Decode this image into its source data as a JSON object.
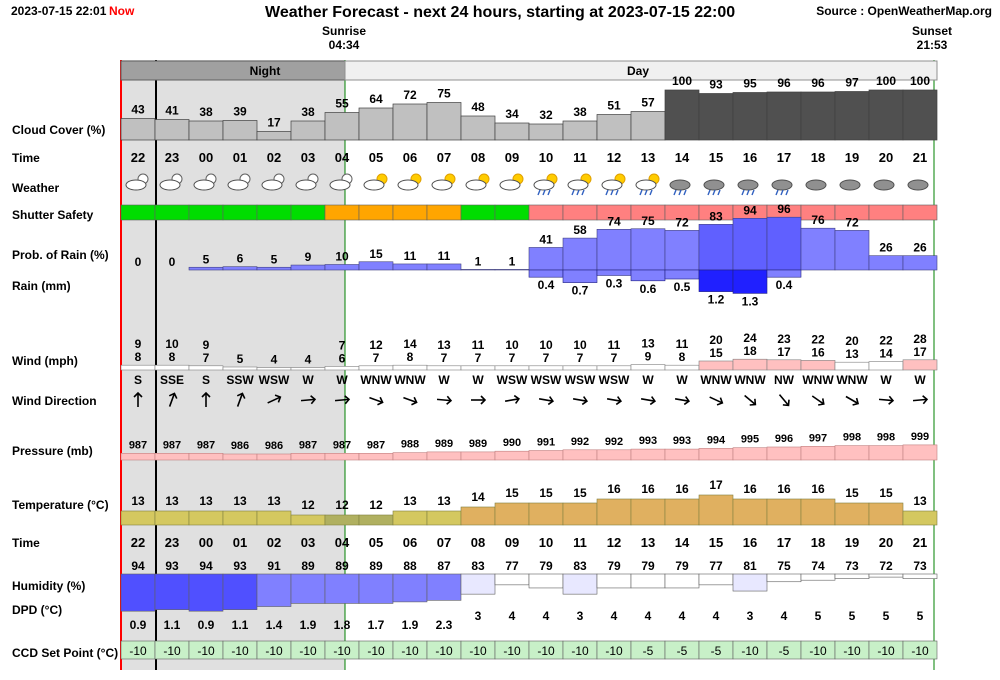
{
  "header": {
    "timestamp": "2023-07-15 22:01",
    "now_label": "Now",
    "title": "Weather Forecast - next 24 hours, starting at 2023-07-15 22:00",
    "source": "Source : OpenWeatherMap.org",
    "sunrise_label": "Sunrise",
    "sunrise_time": "04:34",
    "sunset_label": "Sunset",
    "sunset_time": "21:53"
  },
  "period_labels": {
    "night": "Night",
    "day": "Day"
  },
  "row_labels": {
    "cloud": "Cloud Cover (%)",
    "time": "Time",
    "weather": "Weather",
    "shutter": "Shutter Safety",
    "rain_prob": "Prob. of Rain (%)",
    "rain_mm": "Rain (mm)",
    "wind": "Wind (mph)",
    "wind_dir": "Wind Direction",
    "pressure": "Pressure (mb)",
    "temperature": "Temperature (°C)",
    "time2": "Time",
    "humidity": "Humidity (%)",
    "dpd": "DPD (°C)",
    "ccd": "CCD Set Point (°C)"
  },
  "colors": {
    "night_bg": "#e0e0e0",
    "cloud_light": "#c0c0c0",
    "cloud_dark": "#505050",
    "shutter_safe": "#00dd00",
    "shutter_marginal": "#ffa500",
    "shutter_unsafe": "#ff8080",
    "rain_prob": "#8080ff",
    "rain_mm": "#3030ff",
    "wind_low": "#ffffff",
    "wind_high": "#ffc0c0",
    "pressure": "#ffc0c0",
    "temp_cool": "#d4c860",
    "temp_warm": "#e0b060",
    "humidity_high": "#5050ff",
    "humidity_low": "#ffffff",
    "ccd": "#c8f0c8"
  },
  "chart_data": {
    "type": "table",
    "hours": [
      "22",
      "23",
      "00",
      "01",
      "02",
      "03",
      "04",
      "05",
      "06",
      "07",
      "08",
      "09",
      "10",
      "11",
      "12",
      "13",
      "14",
      "15",
      "16",
      "17",
      "18",
      "19",
      "20",
      "21"
    ],
    "cloud_cover": [
      43,
      41,
      38,
      39,
      17,
      38,
      55,
      64,
      72,
      75,
      48,
      34,
      32,
      38,
      51,
      57,
      100,
      93,
      95,
      96,
      96,
      97,
      100,
      100
    ],
    "weather_icons": [
      "partly-cloudy-night-icon",
      "partly-cloudy-night-icon",
      "partly-cloudy-night-icon",
      "partly-cloudy-night-icon",
      "partly-cloudy-night-icon",
      "partly-cloudy-night-icon",
      "partly-cloudy-night-icon",
      "partly-cloudy-day-icon",
      "partly-cloudy-day-icon",
      "partly-cloudy-day-icon",
      "partly-cloudy-day-icon",
      "partly-cloudy-day-icon",
      "light-rain-sun-icon",
      "light-rain-sun-icon",
      "light-rain-sun-icon",
      "light-rain-sun-icon",
      "rain-cloud-icon",
      "rain-cloud-icon",
      "rain-cloud-icon",
      "rain-cloud-icon",
      "overcast-icon",
      "overcast-icon",
      "overcast-icon",
      "overcast-icon"
    ],
    "shutter_safety": [
      "safe",
      "safe",
      "safe",
      "safe",
      "safe",
      "safe",
      "marginal",
      "marginal",
      "marginal",
      "marginal",
      "safe",
      "safe",
      "unsafe",
      "unsafe",
      "unsafe",
      "unsafe",
      "unsafe",
      "unsafe",
      "unsafe",
      "unsafe",
      "unsafe",
      "unsafe",
      "unsafe",
      "unsafe"
    ],
    "rain_probability": [
      0,
      0,
      5,
      6,
      5,
      9,
      10,
      15,
      11,
      11,
      1,
      1,
      41,
      58,
      74,
      75,
      72,
      83,
      94,
      96,
      76,
      72,
      26,
      26
    ],
    "rain_mm": [
      null,
      null,
      null,
      null,
      null,
      null,
      null,
      null,
      null,
      null,
      null,
      null,
      0.4,
      0.7,
      0.3,
      0.6,
      0.5,
      1.2,
      1.3,
      0.4,
      null,
      null,
      null,
      null
    ],
    "wind_gust": [
      9,
      10,
      9,
      null,
      null,
      null,
      7,
      12,
      14,
      13,
      11,
      10,
      10,
      10,
      11,
      13,
      11,
      20,
      24,
      23,
      22,
      20,
      22,
      28
    ],
    "wind_speed": [
      8,
      8,
      7,
      5,
      4,
      4,
      6,
      7,
      8,
      7,
      7,
      7,
      7,
      7,
      7,
      9,
      8,
      15,
      18,
      17,
      16,
      13,
      14,
      17
    ],
    "wind_direction": [
      "S",
      "SSE",
      "S",
      "SSW",
      "WSW",
      "W",
      "W",
      "WNW",
      "WNW",
      "W",
      "W",
      "WSW",
      "WSW",
      "WSW",
      "WSW",
      "W",
      "W",
      "WNW",
      "WNW",
      "NW",
      "WNW",
      "WNW",
      "W",
      "W"
    ],
    "wind_angle": [
      0,
      20,
      0,
      20,
      65,
      85,
      85,
      110,
      110,
      95,
      90,
      80,
      100,
      100,
      100,
      100,
      100,
      115,
      130,
      140,
      125,
      120,
      95,
      85
    ],
    "pressure": [
      987,
      987,
      987,
      986,
      986,
      987,
      987,
      987,
      988,
      989,
      989,
      990,
      991,
      992,
      992,
      993,
      993,
      994,
      995,
      996,
      997,
      998,
      998,
      999
    ],
    "temperature": [
      13,
      13,
      13,
      13,
      13,
      12,
      12,
      12,
      13,
      13,
      14,
      15,
      15,
      15,
      16,
      16,
      16,
      17,
      16,
      16,
      16,
      15,
      15,
      13
    ],
    "humidity": [
      94,
      93,
      94,
      93,
      91,
      89,
      89,
      89,
      88,
      87,
      83,
      77,
      79,
      83,
      79,
      79,
      79,
      77,
      81,
      75,
      74,
      73,
      72,
      73
    ],
    "dpd": [
      0.9,
      1.1,
      0.9,
      1.1,
      1.4,
      1.9,
      1.8,
      1.7,
      1.9,
      2.3,
      3,
      4,
      4,
      3,
      4,
      4,
      4,
      4,
      3,
      4,
      5,
      5,
      5,
      5
    ],
    "ccd_set_point": [
      -10,
      -10,
      -10,
      -10,
      -10,
      -10,
      -10,
      -10,
      -10,
      -10,
      -10,
      -10,
      -10,
      -10,
      -10,
      -5,
      -5,
      -5,
      -10,
      -5,
      -10,
      -10,
      -10,
      -10
    ]
  }
}
